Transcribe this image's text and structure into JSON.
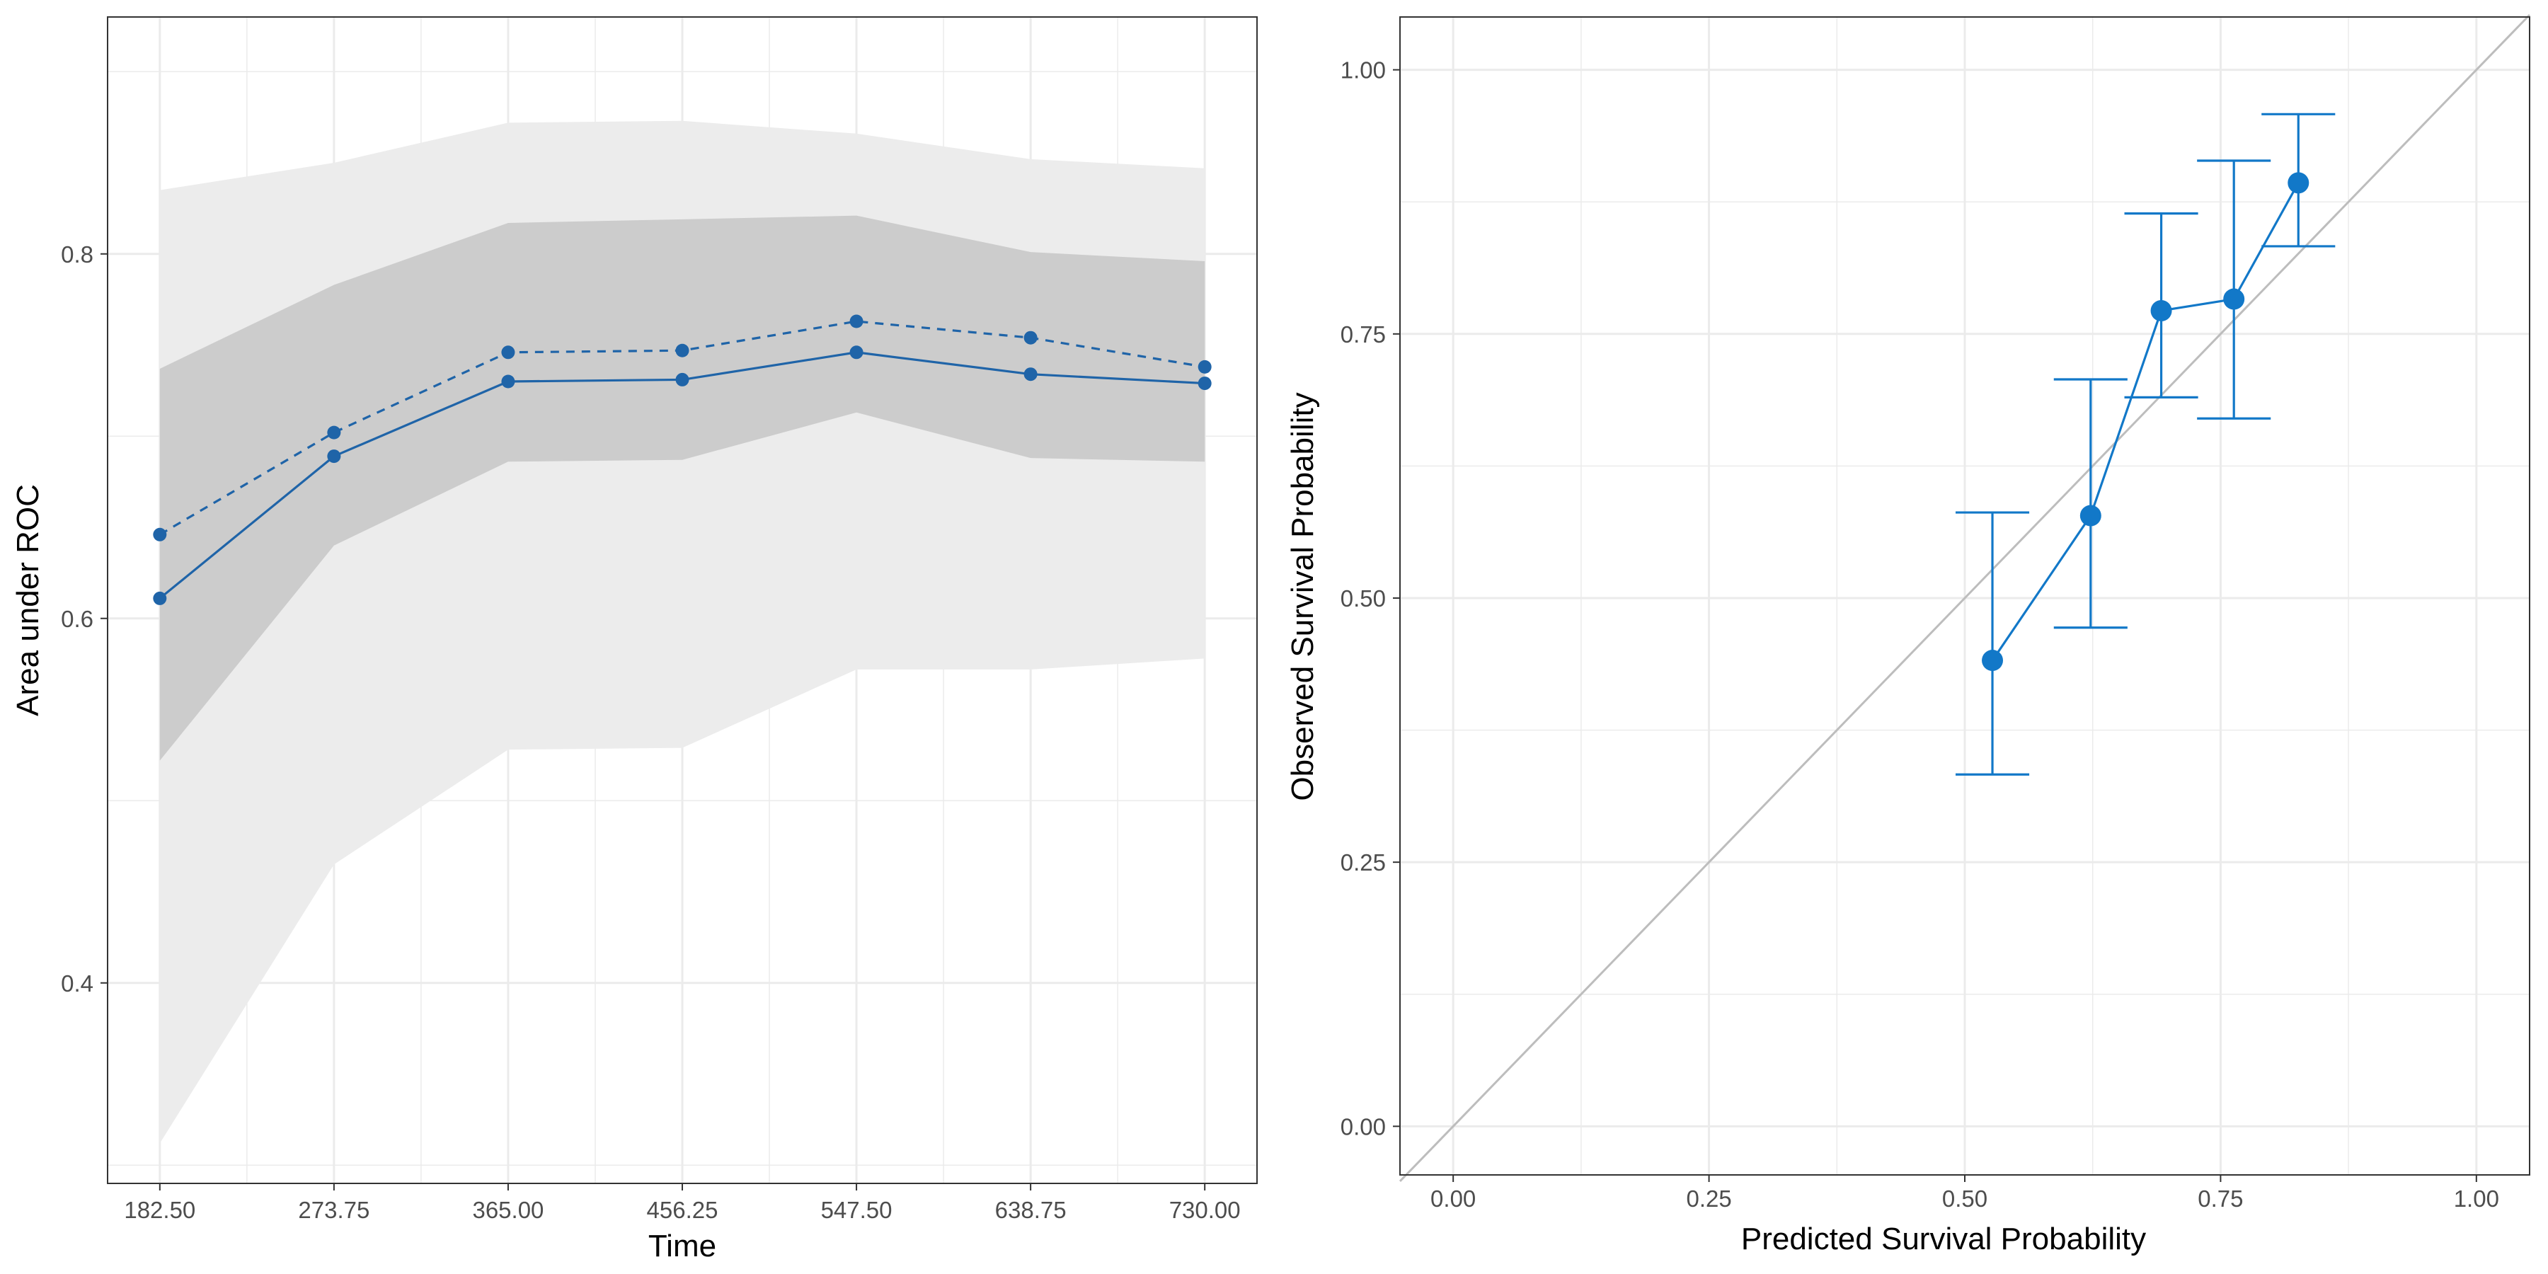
{
  "colors": {
    "series": "#1f64a8",
    "calibration": "#1278c8",
    "band_outer": "#ececec",
    "band_inner": "#cccccc",
    "reference_line": "#bdbdbd",
    "grid": "#ebebeb",
    "panel_border": "#333333"
  },
  "chart_data": [
    {
      "type": "line",
      "xlabel": "Time",
      "ylabel": "Area under ROC",
      "x": [
        182.5,
        273.75,
        365.0,
        456.25,
        547.5,
        638.75,
        730.0
      ],
      "x_tick_labels": [
        "182.50",
        "273.75",
        "365.00",
        "456.25",
        "547.50",
        "638.75",
        "730.00"
      ],
      "y_ticks": [
        0.4,
        0.6,
        0.8
      ],
      "y_tick_labels": [
        "0.4",
        "0.6",
        "0.8"
      ],
      "xlim": [
        155.125,
        757.375
      ],
      "ylim": [
        0.29,
        0.93
      ],
      "grid": true,
      "legend": "none",
      "bands": [
        {
          "style": "outer",
          "lower": [
            0.312,
            0.465,
            0.528,
            0.529,
            0.572,
            0.572,
            0.578
          ],
          "upper": [
            0.835,
            0.85,
            0.872,
            0.873,
            0.866,
            0.852,
            0.847
          ]
        },
        {
          "style": "inner",
          "lower": [
            0.522,
            0.64,
            0.686,
            0.687,
            0.713,
            0.688,
            0.686
          ],
          "upper": [
            0.737,
            0.783,
            0.817,
            0.819,
            0.821,
            0.801,
            0.796
          ]
        }
      ],
      "series": [
        {
          "line": "solid",
          "values": [
            0.611,
            0.689,
            0.73,
            0.731,
            0.746,
            0.734,
            0.729
          ]
        },
        {
          "line": "dashed",
          "values": [
            0.646,
            0.702,
            0.746,
            0.747,
            0.763,
            0.754,
            0.738
          ]
        }
      ]
    },
    {
      "type": "scatter",
      "xlabel": "Predicted Survival Probability",
      "ylabel": "Observed Survival Probability",
      "x_ticks": [
        0.0,
        0.25,
        0.5,
        0.75,
        1.0
      ],
      "x_tick_labels": [
        "0.00",
        "0.25",
        "0.50",
        "0.75",
        "1.00"
      ],
      "y_ticks": [
        0.0,
        0.25,
        0.5,
        0.75,
        1.0
      ],
      "y_tick_labels": [
        "0.00",
        "0.25",
        "0.50",
        "0.75",
        "1.00"
      ],
      "xlim": [
        -0.052,
        1.052
      ],
      "ylim": [
        -0.046,
        1.05
      ],
      "grid": true,
      "legend": "none",
      "reference_line": {
        "from": [
          -0.052,
          -0.052
        ],
        "to": [
          1.052,
          1.052
        ]
      },
      "points": [
        {
          "x": 0.527,
          "y": 0.441,
          "lower": 0.333,
          "upper": 0.581
        },
        {
          "x": 0.623,
          "y": 0.578,
          "lower": 0.472,
          "upper": 0.707
        },
        {
          "x": 0.692,
          "y": 0.772,
          "lower": 0.69,
          "upper": 0.864
        },
        {
          "x": 0.763,
          "y": 0.783,
          "lower": 0.67,
          "upper": 0.914
        },
        {
          "x": 0.826,
          "y": 0.893,
          "lower": 0.833,
          "upper": 0.958
        }
      ]
    }
  ]
}
